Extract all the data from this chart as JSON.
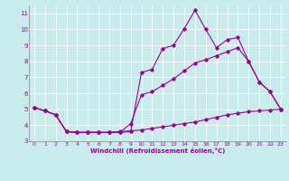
{
  "title": "",
  "xlabel": "Windchill (Refroidissement éolien,°C)",
  "background_color": "#c8ecec",
  "line_color": "#990099",
  "grid_color": "#ffffff",
  "xlim": [
    -0.5,
    23.5
  ],
  "ylim": [
    3.0,
    11.5
  ],
  "xticks": [
    0,
    1,
    2,
    3,
    4,
    5,
    6,
    7,
    8,
    9,
    10,
    11,
    12,
    13,
    14,
    15,
    16,
    17,
    18,
    19,
    20,
    21,
    22,
    23
  ],
  "yticks": [
    3,
    4,
    5,
    6,
    7,
    8,
    9,
    10,
    11
  ],
  "series": {
    "line1": {
      "x": [
        0,
        1,
        2,
        3,
        4,
        5,
        6,
        7,
        8,
        9,
        10,
        11,
        12,
        13,
        14,
        15,
        16,
        17,
        18,
        19,
        20,
        21,
        22,
        23
      ],
      "y": [
        5.1,
        4.9,
        4.65,
        3.6,
        3.55,
        3.55,
        3.55,
        3.55,
        3.55,
        3.6,
        7.3,
        7.5,
        8.8,
        9.0,
        10.05,
        11.2,
        10.0,
        8.85,
        9.35,
        9.5,
        8.0,
        6.7,
        6.1,
        5.0
      ]
    },
    "line2": {
      "x": [
        0,
        1,
        2,
        3,
        4,
        5,
        6,
        7,
        8,
        9,
        10,
        11,
        12,
        13,
        14,
        15,
        16,
        17,
        18,
        19,
        20,
        21,
        22,
        23
      ],
      "y": [
        5.1,
        4.9,
        4.65,
        3.6,
        3.55,
        3.55,
        3.55,
        3.55,
        3.55,
        4.1,
        5.9,
        6.1,
        6.5,
        6.9,
        7.4,
        7.9,
        8.1,
        8.35,
        8.6,
        8.85,
        8.0,
        6.7,
        6.1,
        5.0
      ]
    },
    "line3": {
      "x": [
        0,
        1,
        2,
        3,
        4,
        5,
        6,
        7,
        8,
        9,
        10,
        11,
        12,
        13,
        14,
        15,
        16,
        17,
        18,
        19,
        20,
        21,
        22,
        23
      ],
      "y": [
        5.1,
        4.9,
        4.65,
        3.6,
        3.55,
        3.55,
        3.55,
        3.55,
        3.6,
        3.65,
        3.7,
        3.8,
        3.9,
        4.0,
        4.1,
        4.2,
        4.35,
        4.5,
        4.65,
        4.75,
        4.85,
        4.9,
        4.95,
        5.0
      ]
    }
  }
}
